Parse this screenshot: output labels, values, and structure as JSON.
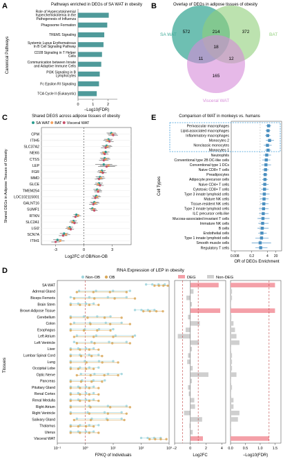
{
  "panels": {
    "A": {
      "letter": "A",
      "title": "Pathways enriched in DEGs of SA WAT in obesity",
      "ylabel": "Canonical Pathways",
      "xlabel": "−Log10(FDR)",
      "xticks": [
        "0",
        "1",
        "2"
      ],
      "bar_color": "#4f9a9a"
    },
    "B": {
      "letter": "B",
      "title": "Overlap of DEGs in adipose tissues of obesity",
      "sets": [
        {
          "name": "SA WAT",
          "color": "#3daa98"
        },
        {
          "name": "BAT",
          "color": "#8fcf7a"
        },
        {
          "name": "Visceral WAT",
          "color": "#d68bd8"
        }
      ],
      "counts": {
        "sa_only": "572",
        "sa_bat": "214",
        "bat_only": "372",
        "center": "18",
        "sa_vis": "11",
        "bat_vis": "12",
        "vis_only": "165"
      }
    },
    "C": {
      "letter": "C",
      "title": "Shared DEGS across adipose tissues of obesity",
      "ylabel": "Shared DEGs in Adipose Tissues of Obesity",
      "xlabel": "Log2FC of OB/Non-OB",
      "xticks": [
        "-3",
        "0",
        "3"
      ],
      "legend": [
        {
          "name": "SA WAT",
          "color": "#2a9d8f"
        },
        {
          "name": "BAT",
          "color": "#f4a261"
        },
        {
          "name": "Visceral WAT",
          "color": "#c8506a"
        }
      ]
    },
    "D": {
      "letter": "D",
      "title": "RNA Expression of LEP in obesity",
      "ylabel": "Tissues",
      "legend1": [
        {
          "name": "Non-OB",
          "color": "#9ed4dc"
        },
        {
          "name": "OB",
          "color": "#d9a85a"
        }
      ],
      "legend2": [
        {
          "name": "DEG",
          "color": "#f4a0a8"
        },
        {
          "name": "Non-DEG",
          "color": "#cfcfcf"
        }
      ],
      "xlabel1": "FPKQ of Individuals",
      "xlabel2": "Log2FC",
      "xlabel3": "−Log10(FDR)",
      "xticks1": [
        "10⁻¹",
        "10⁰",
        "10¹",
        "10²",
        "10³"
      ],
      "xticks2": [
        "−2",
        "0",
        "2",
        "4"
      ],
      "xticks3": [
        "0.0",
        "0.5",
        "1.0",
        "1.5"
      ]
    },
    "E": {
      "letter": "E",
      "title": "Comparison of WAT in monkeys vs. humans",
      "ylabel": "Cell Types",
      "xlabel": "OR of DEGs Enrichment",
      "xticks": [
        "0.008",
        "0.2",
        "4",
        "20"
      ],
      "box_color": "#4a8fc0"
    }
  },
  "chart_data": [
    {
      "panel": "A",
      "type": "bar",
      "title": "Pathways enriched in DEGs of SA WAT in obesity",
      "xlabel": "−Log10(FDR)",
      "ylabel": "Canonical Pathways",
      "categories": [
        "Role of Hypercytokinemia/ hyperchemokinemia in the Pathogenesis of Influenza",
        "Phagosome Formation",
        "TREM1 Signaling",
        "Systemic Lupus Erythematosus In B Cell Signaling Pathway",
        "CD28 Signaling in T Helper Cells",
        "Communication between Innate and Adaptive Immune Cells",
        "PI3K Signaling in B Lymphocytes",
        "Fc Epsilon RI Signaling",
        "TCA Cycle II (Eukaryotic)"
      ],
      "values": [
        2.05,
        1.95,
        1.75,
        1.7,
        1.6,
        1.55,
        1.45,
        1.4,
        1.25
      ],
      "xlim": [
        0,
        2.3
      ]
    },
    {
      "panel": "B",
      "type": "table",
      "title": "Overlap of DEGs in adipose tissues of obesity",
      "regions": [
        "SA WAT only",
        "SA WAT ∩ BAT",
        "BAT only",
        "all three",
        "SA WAT ∩ Visceral WAT",
        "BAT ∩ Visceral WAT",
        "Visceral WAT only"
      ],
      "values": [
        572,
        214,
        372,
        18,
        11,
        12,
        165
      ]
    },
    {
      "panel": "C",
      "type": "scatter",
      "title": "Shared DEGS across adipose tissues of obesity",
      "xlabel": "Log2FC of OB/Non-OB",
      "ylabel": "Shared DEGs in Adipose Tissues of Obesity",
      "xlim": [
        -4.5,
        5
      ],
      "categories": [
        "CPM",
        "ITIH5",
        "SLC37A2",
        "NEK6",
        "CTSS",
        "LEP",
        "FGR",
        "MMD",
        "GLCE",
        "TMEM254",
        "LOC102115001",
        "GALNT16",
        "SUMF1",
        "RTKN",
        "SLC2A1",
        "LGI2",
        "SCN7A",
        "ITIH1"
      ],
      "series": [
        {
          "name": "SA WAT",
          "values": [
            2.9,
            2.6,
            2.4,
            2.3,
            2.2,
            2.1,
            1.9,
            1.7,
            1.6,
            1.4,
            1.3,
            1.1,
            0.9,
            -0.8,
            -1.1,
            -1.5,
            -2.1,
            -2.8
          ]
        },
        {
          "name": "BAT",
          "values": [
            3.0,
            2.5,
            2.5,
            2.1,
            2.3,
            2.6,
            1.8,
            1.8,
            1.5,
            1.5,
            1.4,
            1.2,
            1.0,
            -0.6,
            -1.2,
            -1.6,
            -1.9,
            -2.5
          ]
        },
        {
          "name": "Visceral WAT",
          "values": [
            3.1,
            2.7,
            2.3,
            2.2,
            2.1,
            2.4,
            2.0,
            1.6,
            1.7,
            1.5,
            1.2,
            1.0,
            1.1,
            -0.9,
            -1.0,
            -1.4,
            -2.2,
            -3.0
          ]
        }
      ],
      "errors": [
        1.0,
        0.9,
        1.0,
        0.8,
        1.0,
        1.8,
        0.8,
        0.9,
        0.8,
        0.8,
        0.8,
        0.9,
        0.7,
        0.6,
        0.7,
        0.7,
        0.9,
        0.9
      ]
    },
    {
      "panel": "D",
      "type": "scatter",
      "title": "RNA Expression of LEP in obesity",
      "xlabel": "FPKQ of Individuals",
      "ylabel": "Tissues",
      "x_scale": "log",
      "xlim": [
        0.1,
        1000
      ],
      "categories": [
        "SA WAT",
        "Adrenal Gland",
        "Biceps Femoris",
        "Brain Stem",
        "Brown Adipose Tissue",
        "Cerebellum",
        "Colon",
        "Esophagus",
        "Left Atrium",
        "Left Ventricle",
        "Liver",
        "Lumbar Spinal Cord",
        "Lung",
        "Occipital Lobe",
        "Optic Nerve",
        "Pancreas",
        "Pituitary Gland",
        "Renal Cortex",
        "Renal Medulla",
        "Right Atrium",
        "Right Ventricle",
        "Salivary Gland",
        "Thalamus",
        "Uterus",
        "Visceral WAT"
      ],
      "series": [
        {
          "name": "Non-OB",
          "min": [
            150,
            0.6,
            0.3,
            0.3,
            60,
            0.3,
            0.4,
            0.3,
            0.5,
            0.4,
            0.3,
            0.3,
            0.3,
            0.3,
            0.7,
            0.3,
            0.3,
            0.3,
            0.3,
            0.3,
            0.3,
            0.5,
            0.3,
            0.3,
            100
          ],
          "max": [
            700,
            40,
            30,
            2,
            300,
            8,
            20,
            10,
            60,
            30,
            2,
            3,
            10,
            3,
            20,
            5,
            2,
            2,
            2,
            30,
            20,
            20,
            3,
            2,
            500
          ]
        },
        {
          "name": "OB",
          "min": [
            300,
            0.5,
            0.4,
            0.3,
            120,
            0.3,
            0.3,
            0.3,
            0.4,
            0.5,
            0.3,
            0.3,
            0.3,
            0.3,
            0.5,
            0.3,
            0.3,
            0.3,
            0.3,
            0.3,
            0.3,
            0.4,
            0.3,
            0.3,
            200
          ],
          "max": [
            900,
            30,
            60,
            3,
            600,
            20,
            40,
            8,
            50,
            40,
            3,
            4,
            15,
            2,
            15,
            4,
            3,
            3,
            3,
            40,
            30,
            25,
            2,
            3,
            800
          ]
        }
      ]
    },
    {
      "panel": "D2",
      "type": "bar",
      "xlabel": "Log2FC",
      "xlim": [
        -2,
        4.5
      ],
      "categories": [
        "SA WAT",
        "Adrenal Gland",
        "Biceps Femoris",
        "Brain Stem",
        "Brown Adipose Tissue",
        "Cerebellum",
        "Colon",
        "Esophagus",
        "Left Atrium",
        "Left Ventricle",
        "Liver",
        "Lumbar Spinal Cord",
        "Lung",
        "Occipital Lobe",
        "Optic Nerve",
        "Pancreas",
        "Pituitary Gland",
        "Renal Cortex",
        "Renal Medulla",
        "Right Atrium",
        "Right Ventricle",
        "Salivary Gland",
        "Thalamus",
        "Uterus",
        "Visceral WAT"
      ],
      "values": [
        3.6,
        0.4,
        -0.5,
        0.2,
        3.8,
        -0.3,
        1.2,
        -0.6,
        -1.6,
        1.1,
        0.2,
        -0.3,
        -0.4,
        0.3,
        2.3,
        0.2,
        -0.3,
        -0.2,
        0.5,
        0.6,
        -0.8,
        1.5,
        -0.1,
        0.3,
        1.6
      ],
      "status": [
        "DEG",
        "Non-DEG",
        "Non-DEG",
        "Non-DEG",
        "DEG",
        "Non-DEG",
        "Non-DEG",
        "Non-DEG",
        "Non-DEG",
        "Non-DEG",
        "Non-DEG",
        "Non-DEG",
        "Non-DEG",
        "Non-DEG",
        "Non-DEG",
        "Non-DEG",
        "Non-DEG",
        "Non-DEG",
        "Non-DEG",
        "Non-DEG",
        "Non-DEG",
        "Non-DEG",
        "Non-DEG",
        "Non-DEG",
        "DEG"
      ]
    },
    {
      "panel": "D3",
      "type": "bar",
      "xlabel": "−Log10(FDR)",
      "xlim": [
        0,
        1.7
      ],
      "values": [
        1.5,
        0.05,
        0.05,
        0.02,
        1.5,
        0.03,
        0.1,
        0.15,
        0.2,
        0.3,
        0.02,
        0.05,
        0.05,
        0.05,
        0.2,
        0.02,
        0.05,
        0.02,
        0.1,
        0.1,
        0.3,
        0.25,
        0.02,
        0.02,
        1.3
      ]
    },
    {
      "panel": "E",
      "type": "scatter",
      "title": "Comparison of WAT in monkeys vs. humans",
      "xlabel": "OR of DEGs Enrichment",
      "ylabel": "Cell Types",
      "x_scale": "log",
      "xlim": [
        0.004,
        60
      ],
      "categories": [
        "Perivascular macrophages",
        "Lipid-associated macrophages",
        "Inflammatory macrophages",
        "Monocytes 2",
        "Nonclassic monocytes",
        "Monocytes 1",
        "Neutrophils",
        "Conventional type 2B DC-like cells",
        "Conventional type 1 DCs",
        "Naive CD8+ T cells",
        "Preadipocytes",
        "Adipocyte precursor cells",
        "Naive CD4+ T cells",
        "Cytotoxic CD8+ T cells",
        "Type 3 innate lymphoid cells",
        "Mature NK cells",
        "Tissue-resident NK cells",
        "Type 2 innate lymphoid cells",
        "ILC precursor cells-like",
        "Mucosa-associated invariant T cells",
        "Immature NK cells",
        "B cells",
        "Endothelial cells",
        "Type 1 innate lymphoid cells",
        "Smooth muscle cells",
        "Regulatory T cells"
      ],
      "values": [
        5,
        4.5,
        4.2,
        6,
        4,
        4.5,
        3.5,
        3.2,
        3,
        2.8,
        2.6,
        2.5,
        2.4,
        2.3,
        2.2,
        2.1,
        2,
        1.9,
        1.8,
        1.7,
        1.6,
        1.5,
        1.4,
        1.3,
        1.0,
        1.1
      ],
      "ci_low": [
        3,
        2.8,
        2.6,
        3,
        2,
        2.5,
        1.8,
        1.5,
        1.3,
        1.5,
        1.6,
        1.5,
        1.3,
        1.2,
        1,
        1,
        1,
        0.8,
        0.8,
        0.6,
        0.7,
        0.6,
        0.7,
        0.4,
        0.2,
        0.4
      ],
      "ci_high": [
        8,
        7,
        7,
        14,
        9,
        8,
        8,
        7,
        8,
        5,
        4,
        4.2,
        5,
        5,
        6,
        5,
        5,
        5,
        5,
        6,
        5,
        5,
        3.5,
        5,
        8,
        4
      ],
      "highlight_categories": [
        "Perivascular macrophages",
        "Lipid-associated macrophages",
        "Inflammatory macrophages",
        "Monocytes 2",
        "Nonclassic monocytes",
        "Monocytes 1"
      ]
    }
  ]
}
